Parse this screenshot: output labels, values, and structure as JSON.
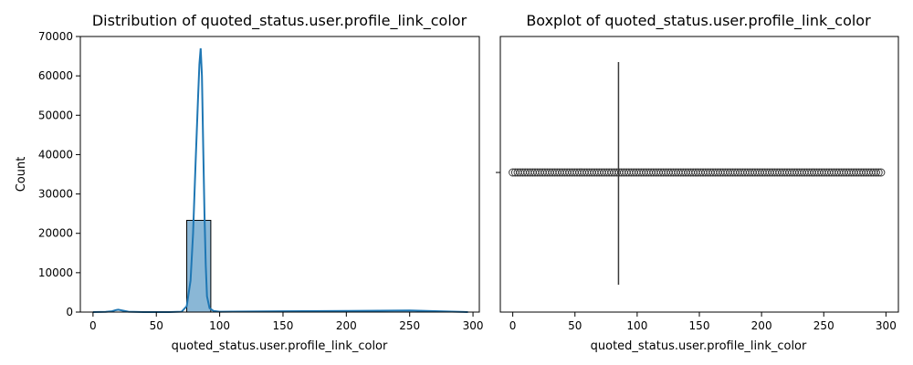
{
  "chart_data": [
    {
      "type": "histogram",
      "title": "Distribution of quoted_status.user.profile_link_color",
      "xlabel": "quoted_status.user.profile_link_color",
      "ylabel": "Count",
      "xlim": [
        -10,
        305
      ],
      "ylim": [
        0,
        70000
      ],
      "xticks": [
        0,
        50,
        100,
        150,
        200,
        250,
        300
      ],
      "yticks": [
        0,
        10000,
        20000,
        30000,
        40000,
        50000,
        60000,
        70000
      ],
      "bins": [
        {
          "x0": 0,
          "x1": 19,
          "count": 0
        },
        {
          "x0": 19,
          "x1": 37,
          "count": 0
        },
        {
          "x0": 37,
          "x1": 56,
          "count": 0
        },
        {
          "x0": 56,
          "x1": 74,
          "count": 0
        },
        {
          "x0": 74,
          "x1": 93,
          "count": 23300
        },
        {
          "x0": 93,
          "x1": 111,
          "count": 0
        },
        {
          "x0": 111,
          "x1": 130,
          "count": 0
        },
        {
          "x0": 130,
          "x1": 148,
          "count": 0
        },
        {
          "x0": 148,
          "x1": 167,
          "count": 0
        },
        {
          "x0": 167,
          "x1": 185,
          "count": 0
        },
        {
          "x0": 185,
          "x1": 204,
          "count": 0
        },
        {
          "x0": 204,
          "x1": 222,
          "count": 0
        },
        {
          "x0": 222,
          "x1": 241,
          "count": 0
        },
        {
          "x0": 241,
          "x1": 259,
          "count": 0
        },
        {
          "x0": 259,
          "x1": 278,
          "count": 0
        },
        {
          "x0": 278,
          "x1": 296,
          "count": 0
        }
      ],
      "kde": {
        "x": [
          0,
          10,
          15,
          18,
          20,
          23,
          28,
          40,
          60,
          70,
          74,
          77,
          79,
          81,
          83,
          84,
          85,
          86,
          87,
          88,
          89,
          90,
          92,
          95,
          100,
          150,
          200,
          250,
          296
        ],
        "y": [
          0,
          50,
          200,
          500,
          600,
          400,
          100,
          0,
          0,
          100,
          1500,
          8000,
          20000,
          38000,
          55000,
          63000,
          67000,
          60000,
          42000,
          25000,
          12000,
          4000,
          1000,
          300,
          100,
          200,
          300,
          400,
          0
        ]
      },
      "colors": {
        "bar_fill": "#8ab7d6",
        "bar_edge": "#000000",
        "kde_line": "#1f77b4"
      }
    },
    {
      "type": "boxplot",
      "title": "Boxplot of quoted_status.user.profile_link_color",
      "xlabel": "quoted_status.user.profile_link_color",
      "xlim": [
        -10,
        310
      ],
      "xticks": [
        0,
        50,
        100,
        150,
        200,
        250,
        300
      ],
      "median": 85,
      "q1": 85,
      "q3": 85,
      "whisker_low": 85,
      "whisker_high": 85,
      "outliers_range": [
        0,
        296
      ],
      "outlier_count": 150,
      "colors": {
        "box": "#3a3a3a",
        "outlier_edge": "#3a3a3a"
      }
    }
  ]
}
